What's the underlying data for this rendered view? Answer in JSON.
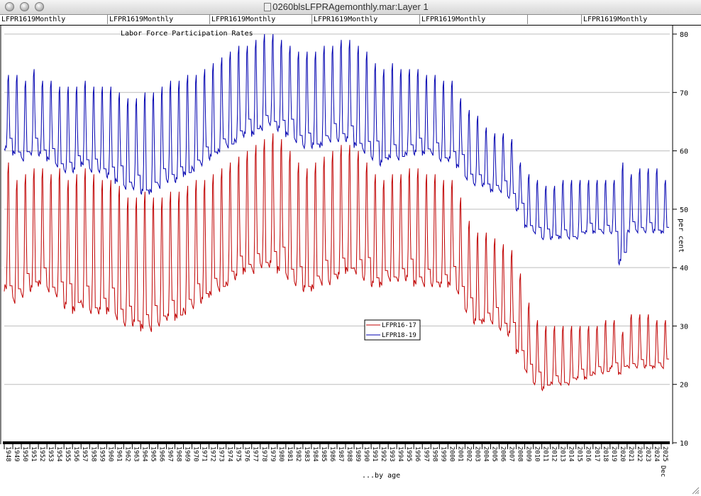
{
  "window": {
    "title": "0260blsLFPRAgemonthly.mar:Layer 1"
  },
  "tabs": [
    "LFPR1619Monthly",
    "LFPR1619Monthly",
    "LFPR1619Monthly",
    "LFPR1619Monthly",
    "LFPR1619Monthly",
    "",
    "LFPR1619Monthly"
  ],
  "chart_data": {
    "type": "line",
    "title": "Labor Force Participation Rates",
    "xlabel": "...by age",
    "ylabel": "per cent",
    "ylim": [
      10,
      80
    ],
    "yticks": [
      10,
      20,
      30,
      40,
      50,
      60,
      70,
      80
    ],
    "x_end_label": "Dec",
    "xtick_labels": [
      "1948",
      "1949",
      "1950",
      "1951",
      "1952",
      "1953",
      "1954",
      "1955",
      "1956",
      "1957",
      "1958",
      "1959",
      "1960",
      "1961",
      "1962",
      "1963",
      "1964",
      "1965",
      "1966",
      "1967",
      "1968",
      "1969",
      "1970",
      "1971",
      "1972",
      "1973",
      "1974",
      "1975",
      "1976",
      "1977",
      "1978",
      "1979",
      "1980",
      "1981",
      "1982",
      "1983",
      "1984",
      "1985",
      "1986",
      "1987",
      "1988",
      "1989",
      "1990",
      "1991",
      "1992",
      "1993",
      "1994",
      "1995",
      "1996",
      "1997",
      "1998",
      "1999",
      "2000",
      "2001",
      "2002",
      "2003",
      "2004",
      "2005",
      "2006",
      "2007",
      "2008",
      "2009",
      "2010",
      "2011",
      "2012",
      "2013",
      "2014",
      "2015",
      "2016",
      "2017",
      "2018",
      "2019",
      "2020",
      "2021",
      "2022",
      "2023",
      "2024",
      "2025"
    ],
    "legend_position": "center-right",
    "series": [
      {
        "name": "LFPR16-17",
        "color": "#c00000",
        "annual_min": [
          34,
          32,
          33,
          34,
          35,
          34,
          33,
          31,
          30,
          31,
          30,
          30,
          30,
          29,
          28,
          28,
          27,
          27,
          28,
          29,
          29,
          30,
          31,
          32,
          33,
          34,
          35,
          36,
          37,
          37,
          38,
          38,
          37,
          36,
          35,
          34,
          34,
          35,
          35,
          36,
          37,
          37,
          36,
          35,
          35,
          36,
          36,
          36,
          35,
          35,
          35,
          35,
          35,
          34,
          31,
          29,
          29,
          29,
          28,
          27,
          24,
          21,
          19,
          18,
          19,
          19,
          19,
          20,
          20,
          21,
          21,
          22,
          21,
          22,
          22,
          22,
          22,
          22
        ],
        "annual_max": [
          58,
          55,
          56,
          57,
          57,
          56,
          57,
          55,
          56,
          57,
          56,
          55,
          55,
          54,
          52,
          52,
          53,
          52,
          52,
          53,
          53,
          54,
          55,
          55,
          56,
          57,
          58,
          59,
          60,
          61,
          62,
          63,
          62,
          60,
          58,
          57,
          58,
          59,
          60,
          61,
          61,
          60,
          58,
          56,
          55,
          56,
          56,
          57,
          57,
          56,
          56,
          55,
          55,
          52,
          48,
          46,
          46,
          45,
          44,
          43,
          39,
          34,
          31,
          30,
          30,
          30,
          30,
          30,
          30,
          30,
          31,
          31,
          29,
          32,
          32,
          32,
          31,
          31
        ]
      },
      {
        "name": "LFPR18-19",
        "color": "#0000b0",
        "annual_min": [
          59,
          58,
          57,
          58,
          58,
          57,
          56,
          55,
          55,
          56,
          55,
          55,
          54,
          53,
          52,
          52,
          51,
          51,
          52,
          53,
          53,
          54,
          55,
          56,
          57,
          58,
          59,
          60,
          61,
          61,
          62,
          63,
          62,
          61,
          60,
          59,
          59,
          59,
          60,
          60,
          60,
          59,
          58,
          57,
          56,
          57,
          57,
          58,
          58,
          58,
          58,
          57,
          57,
          56,
          54,
          53,
          53,
          52,
          52,
          51,
          49,
          46,
          45,
          44,
          44,
          44,
          44,
          44,
          45,
          45,
          45,
          45,
          39,
          45,
          45,
          45,
          45,
          45
        ],
        "annual_max": [
          73,
          73,
          72,
          74,
          72,
          72,
          71,
          71,
          71,
          72,
          71,
          71,
          71,
          70,
          69,
          69,
          70,
          70,
          71,
          72,
          72,
          73,
          73,
          74,
          75,
          76,
          77,
          78,
          78,
          79,
          80,
          80,
          79,
          78,
          77,
          77,
          77,
          78,
          78,
          79,
          79,
          78,
          77,
          75,
          74,
          75,
          74,
          74,
          74,
          73,
          73,
          72,
          72,
          69,
          67,
          66,
          64,
          63,
          63,
          62,
          58,
          56,
          55,
          54,
          54,
          55,
          55,
          55,
          55,
          55,
          55,
          55,
          58,
          56,
          57,
          57,
          57,
          55
        ]
      }
    ]
  }
}
